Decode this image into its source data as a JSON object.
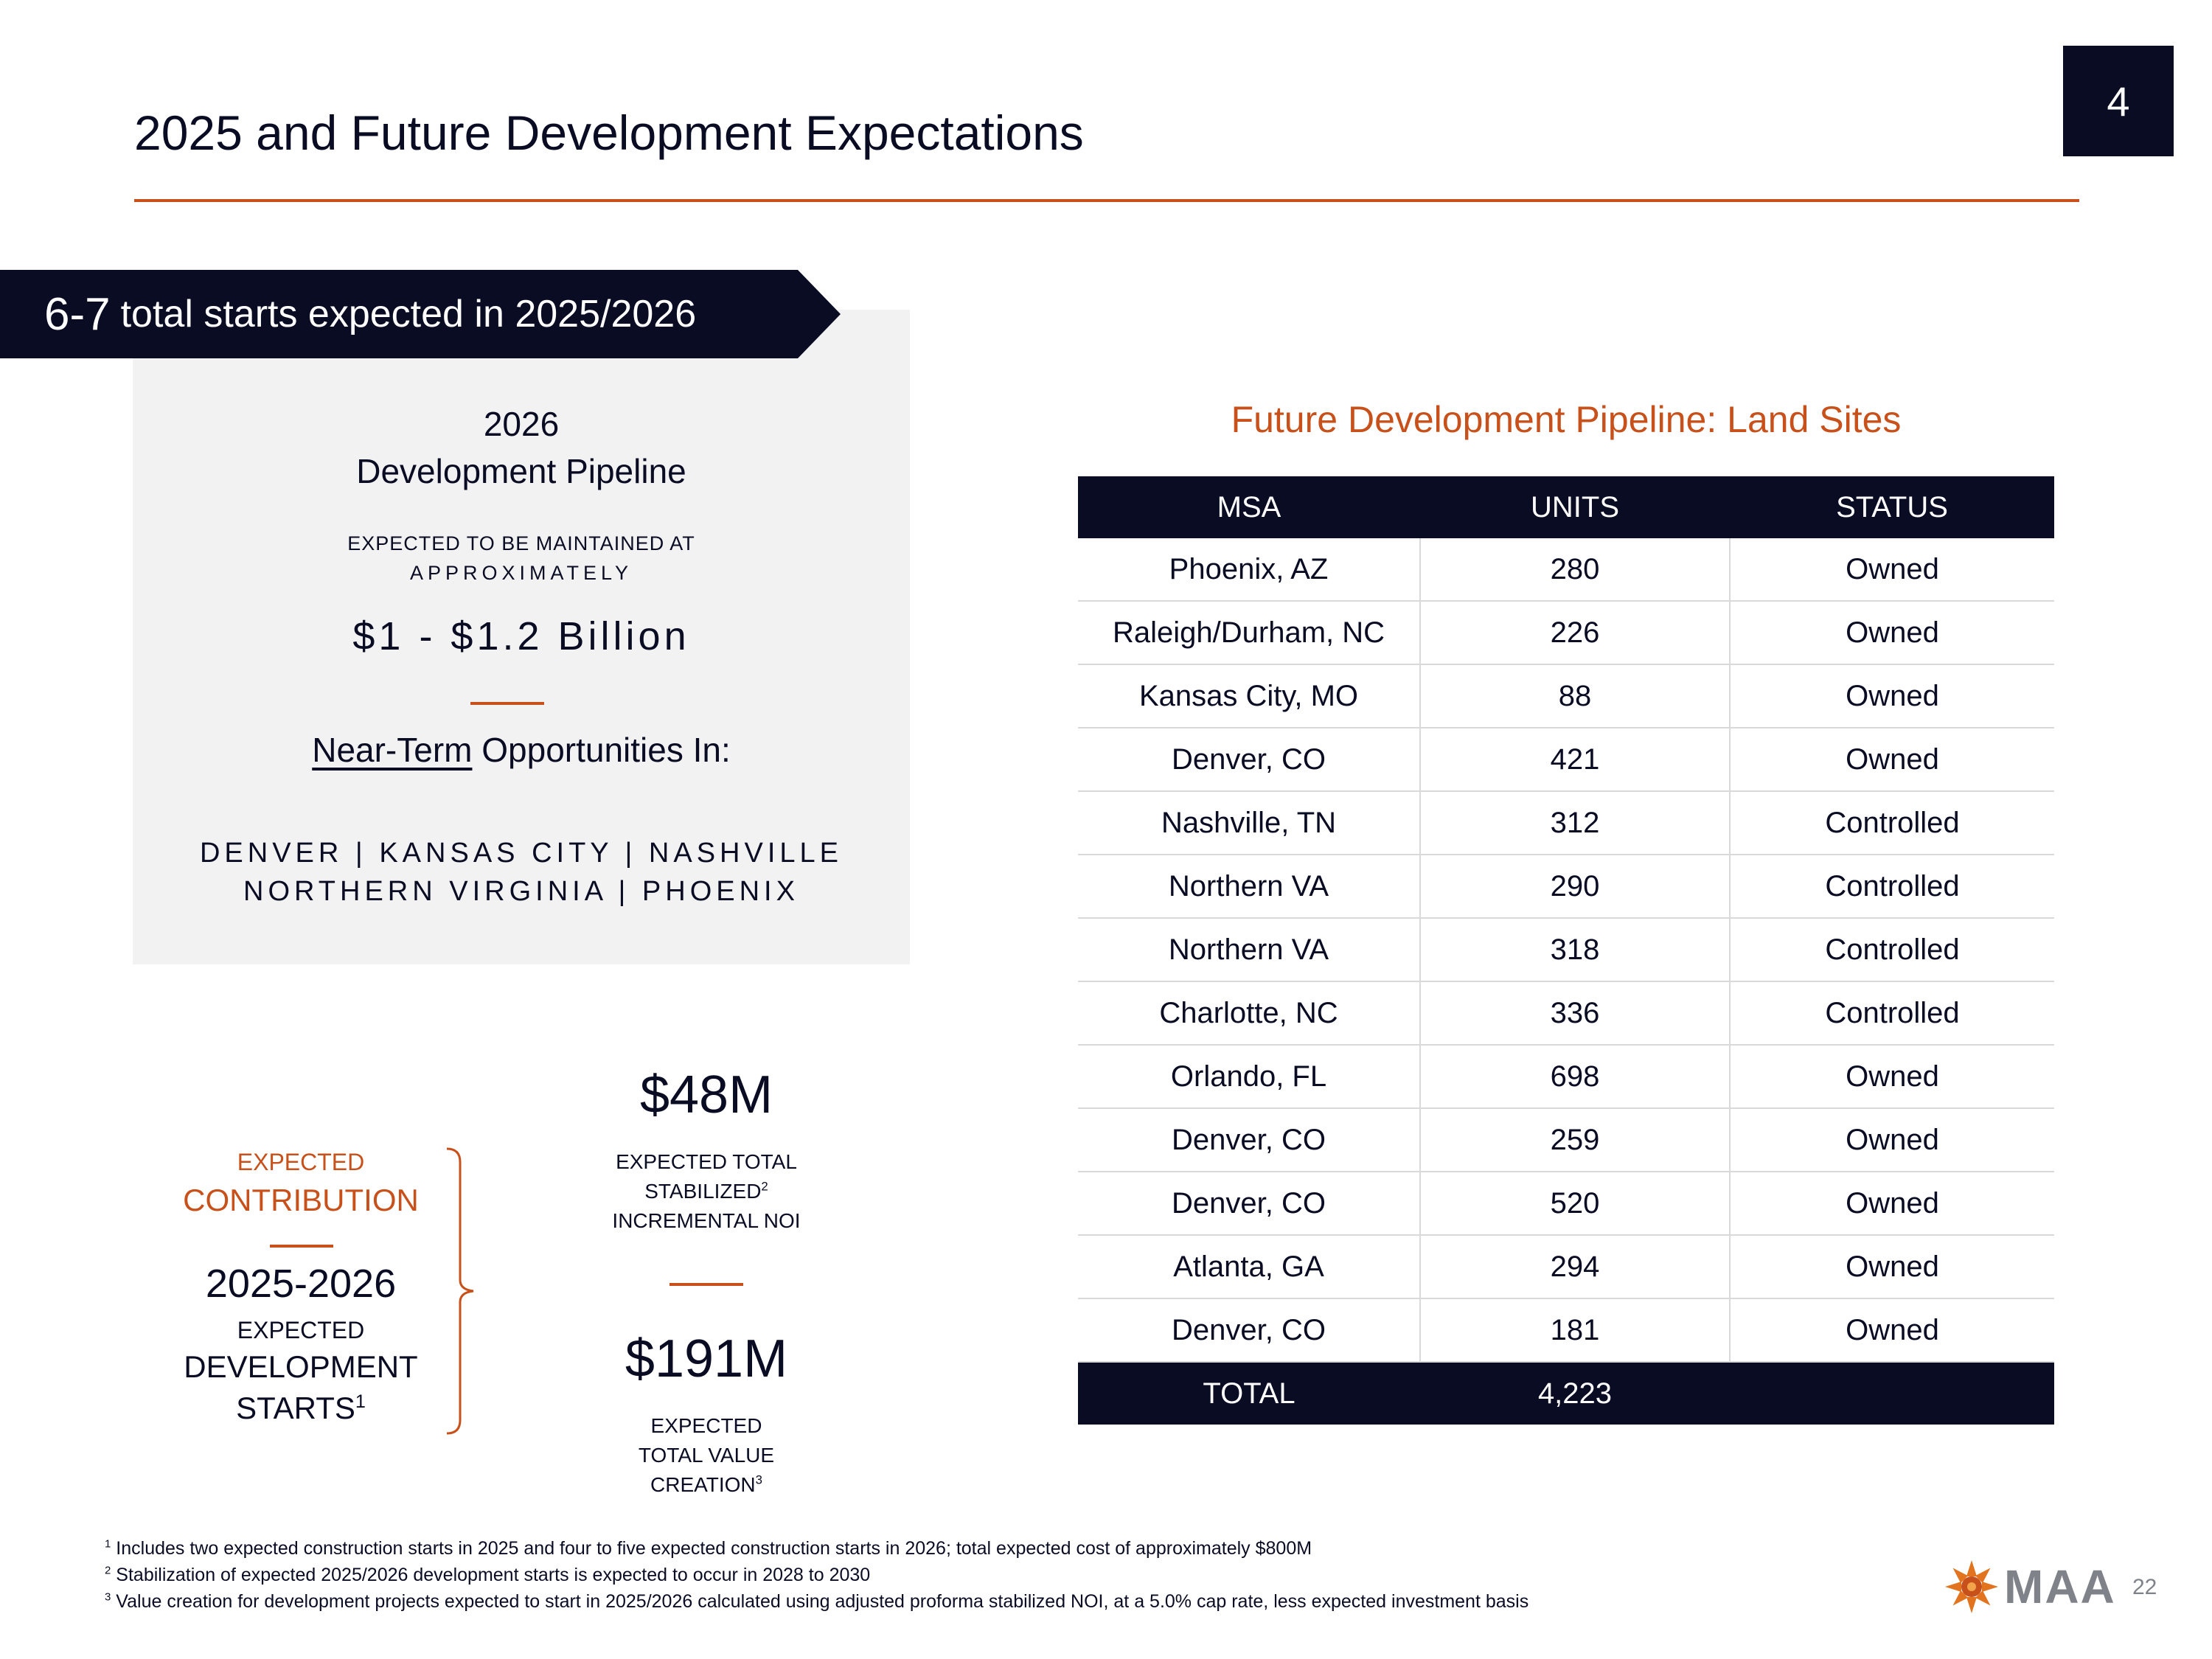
{
  "header": {
    "title": "2025 and Future Development Expectations",
    "section_number": "4",
    "accent_color": "#c8511b",
    "navy_color": "#0a0c24"
  },
  "banner": {
    "number": "6-7",
    "text": "total starts expected in 2025/2026"
  },
  "pipeline_panel": {
    "year": "2026",
    "title": "Development Pipeline",
    "subtitle_line1": "EXPECTED TO BE MAINTAINED AT",
    "subtitle_line2": "APPROXIMATELY",
    "amount": "$1 - $1.2 Billion",
    "near_term_underlined": "Near-Term",
    "near_term_rest": "Opportunities In:",
    "cities_line1": "DENVER | KANSAS CITY | NASHVILLE",
    "cities_line2": "NORTHERN VIRGINIA | PHOENIX"
  },
  "contribution": {
    "expected_label": "EXPECTED",
    "contribution_label": "CONTRIBUTION",
    "years": "2025-2026",
    "expected2": "EXPECTED",
    "development_label": "DEVELOPMENT",
    "starts_label": "STARTS",
    "starts_sup": "1"
  },
  "metrics": {
    "noi_value": "$48M",
    "noi_line1": "EXPECTED TOTAL",
    "noi_line2": "STABILIZED",
    "noi_line2_sup": "2",
    "noi_line3": "INCREMENTAL NOI",
    "value_value": "$191M",
    "value_line1": "EXPECTED",
    "value_line2": "TOTAL VALUE",
    "value_line3": "CREATION",
    "value_line3_sup": "3"
  },
  "land_sites": {
    "title": "Future Development Pipeline: Land Sites",
    "columns": [
      "MSA",
      "UNITS",
      "STATUS"
    ],
    "rows": [
      [
        "Phoenix, AZ",
        "280",
        "Owned"
      ],
      [
        "Raleigh/Durham, NC",
        "226",
        "Owned"
      ],
      [
        "Kansas City, MO",
        "88",
        "Owned"
      ],
      [
        "Denver, CO",
        "421",
        "Owned"
      ],
      [
        "Nashville, TN",
        "312",
        "Controlled"
      ],
      [
        "Northern VA",
        "290",
        "Controlled"
      ],
      [
        "Northern VA",
        "318",
        "Controlled"
      ],
      [
        "Charlotte, NC",
        "336",
        "Controlled"
      ],
      [
        "Orlando, FL",
        "698",
        "Owned"
      ],
      [
        "Denver, CO",
        "259",
        "Owned"
      ],
      [
        "Denver, CO",
        "520",
        "Owned"
      ],
      [
        "Atlanta, GA",
        "294",
        "Owned"
      ],
      [
        "Denver, CO",
        "181",
        "Owned"
      ]
    ],
    "total_label": "TOTAL",
    "total_units": "4,223"
  },
  "footnotes": [
    {
      "mark": "1",
      "text": "Includes two expected construction starts in 2025 and four to five expected construction starts in 2026; total expected cost of approximately $800M"
    },
    {
      "mark": "2",
      "text": "Stabilization of expected 2025/2026 development starts is expected to occur in 2028 to 2030"
    },
    {
      "mark": "3",
      "text": "Value creation for development projects expected to start in 2025/2026 calculated using adjusted proforma stabilized NOI, at a 5.0% cap rate, less expected investment basis"
    }
  ],
  "footer": {
    "logo_text": "MAA",
    "page_number": "22"
  }
}
